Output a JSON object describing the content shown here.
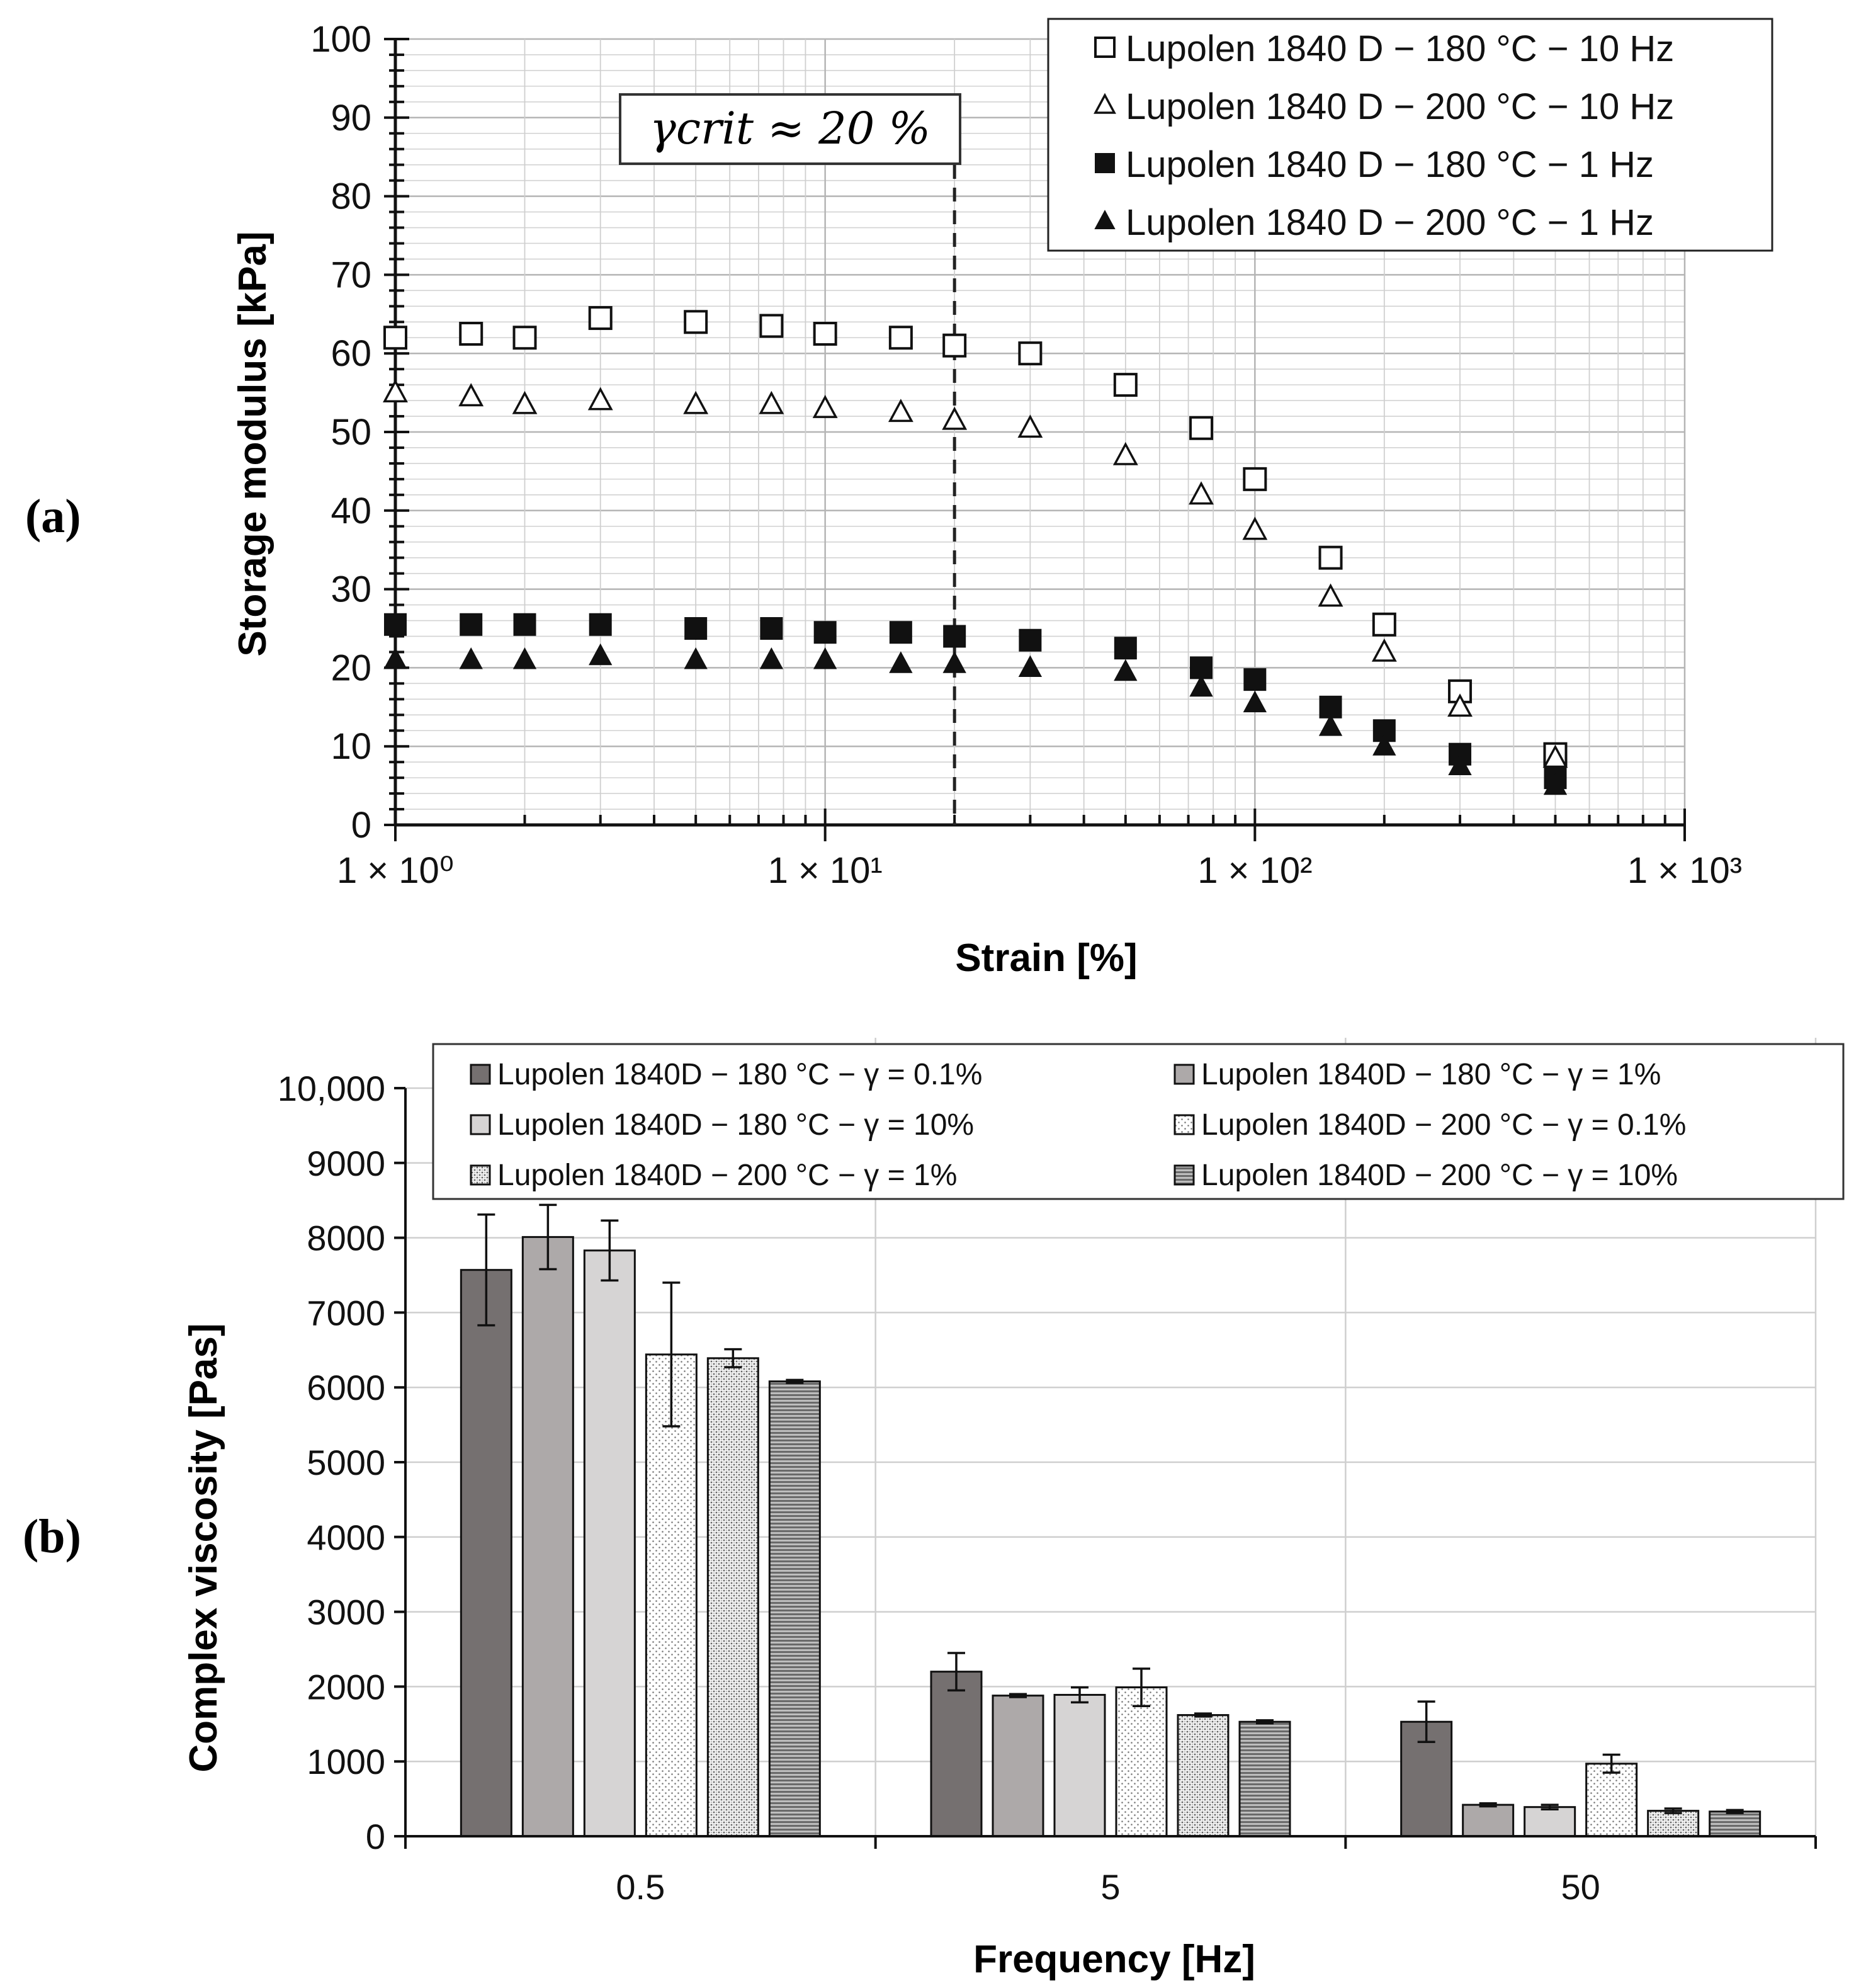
{
  "panel_labels": {
    "a": "(a)",
    "b": "(b)"
  },
  "chart_data": [
    {
      "id": "a",
      "type": "scatter",
      "xscale": "log",
      "xlim": [
        1,
        1000
      ],
      "ylim": [
        0,
        100
      ],
      "xlabel": "Strain [%]",
      "ylabel": "Storage modulus [kPa]",
      "xtick_labels": [
        "1 × 10⁰",
        "1 × 10¹",
        "1 × 10²",
        "1 × 10³"
      ],
      "ytick_labels": [
        "0",
        "10",
        "20",
        "30",
        "40",
        "50",
        "60",
        "70",
        "80",
        "90",
        "100"
      ],
      "grid": true,
      "legend_position": "top-right",
      "annotation": {
        "text": "γcrit ≈ 20 %",
        "x": 20
      },
      "x": [
        1,
        1.5,
        2,
        3,
        5,
        7.5,
        10,
        15,
        20,
        30,
        50,
        75,
        100,
        150,
        200,
        300,
        500
      ],
      "series": [
        {
          "name": "Lupolen 1840 D − 180 °C − 10 Hz",
          "marker": "square-open",
          "values": [
            62,
            62.5,
            62,
            64.5,
            64,
            63.5,
            62.5,
            62,
            61,
            60,
            56,
            50.5,
            44,
            34,
            25.5,
            17,
            9
          ]
        },
        {
          "name": "Lupolen 1840 D − 200 °C − 10 Hz",
          "marker": "triangle-open",
          "values": [
            55,
            54.5,
            53.5,
            54,
            53.5,
            53.5,
            53,
            52.5,
            51.5,
            50.5,
            47,
            42,
            37.5,
            29,
            22,
            15,
            8.5
          ]
        },
        {
          "name": "Lupolen 1840 D − 180 °C − 1 Hz",
          "marker": "square-filled",
          "values": [
            25.5,
            25.5,
            25.5,
            25.5,
            25,
            25,
            24.5,
            24.5,
            24,
            23.5,
            22.5,
            20,
            18.5,
            15,
            12,
            9,
            6
          ]
        },
        {
          "name": "Lupolen 1840 D − 200 °C − 1 Hz",
          "marker": "triangle-filled",
          "values": [
            21,
            21,
            21,
            21.5,
            21,
            21,
            21,
            20.5,
            20.5,
            20,
            19.5,
            17.5,
            15.5,
            12.5,
            10,
            7.5,
            5
          ]
        }
      ]
    },
    {
      "id": "b",
      "type": "bar",
      "categories": [
        "0.5",
        "5",
        "50"
      ],
      "xlabel": "Frequency [Hz]",
      "ylabel": "Complex viscosity  [Pas]",
      "ylim": [
        0,
        10000
      ],
      "ytick_labels": [
        "0",
        "1000",
        "2000",
        "3000",
        "4000",
        "5000",
        "6000",
        "7000",
        "8000",
        "9000",
        "10,000"
      ],
      "grid": true,
      "legend_position": "top",
      "series": [
        {
          "name": "Lupolen  1840D  − 180 °C − γ = 0.1%",
          "fill": "#757070",
          "pattern": "solid",
          "values": [
            7570,
            2200,
            1530
          ],
          "errors": [
            740,
            250,
            270
          ]
        },
        {
          "name": "Lupolen  1840D  − 180 °C − γ = 1%",
          "fill": "#ada9a9",
          "pattern": "solid",
          "values": [
            8010,
            1880,
            420
          ],
          "errors": [
            430,
            20,
            20
          ]
        },
        {
          "name": "Lupolen  1840D  − 180 °C − γ = 10%",
          "fill": "#d6d4d4",
          "pattern": "solid",
          "values": [
            7830,
            1890,
            390
          ],
          "errors": [
            400,
            100,
            30
          ]
        },
        {
          "name": "Lupolen  1840D  − 200 °C − γ = 0.1%",
          "fill": "#ffffff",
          "pattern": "dots-sparse",
          "values": [
            6440,
            1990,
            970
          ],
          "errors": [
            960,
            250,
            120
          ]
        },
        {
          "name": "Lupolen  1840D  − 200 °C − γ = 1%",
          "fill": "#ffffff",
          "pattern": "dots-dense",
          "values": [
            6390,
            1620,
            340
          ],
          "errors": [
            120,
            20,
            30
          ]
        },
        {
          "name": "Lupolen  1840D  − 200 °C − γ = 10%",
          "fill": "#9a9a9a",
          "pattern": "hlines",
          "values": [
            6080,
            1530,
            330
          ],
          "errors": [
            20,
            20,
            20
          ]
        }
      ]
    }
  ]
}
